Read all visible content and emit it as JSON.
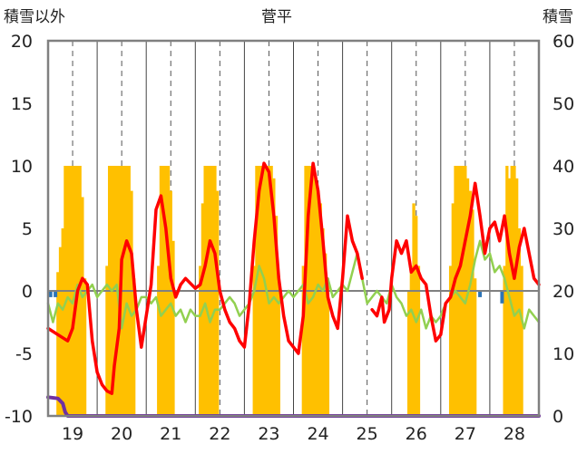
{
  "chart_data": {
    "type": "line",
    "title": "菅平",
    "ylabel_left": "積雪以外",
    "ylabel_right": "積雪",
    "ylim_left": [
      -10,
      20
    ],
    "ylim_right": [
      0,
      60
    ],
    "yticks_left": [
      "20",
      "15",
      "10",
      "5",
      "0",
      "-5",
      "-10"
    ],
    "yticks_right": [
      "60",
      "50",
      "40",
      "30",
      "20",
      "10",
      "0"
    ],
    "xlim": [
      18.5,
      28.5
    ],
    "xticks": [
      "19",
      "20",
      "21",
      "22",
      "23",
      "24",
      "25",
      "26",
      "27",
      "28"
    ],
    "grid": "vertical-dashed-half-days",
    "colors": {
      "snow_depth": "#FFC000",
      "red_line": "#FF0000",
      "green_line": "#92D050",
      "purple_line": "#7030A0",
      "blue_bars": "#2E75B6",
      "frame": "#808080"
    },
    "series": [
      {
        "key": "red",
        "axis": "left",
        "x": [
          18.5,
          18.7,
          18.9,
          19.0,
          19.1,
          19.2,
          19.3,
          19.4,
          19.5,
          19.6,
          19.7,
          19.8,
          19.85,
          19.95,
          20.0,
          20.1,
          20.2,
          20.3,
          20.4,
          20.5,
          20.6,
          20.7,
          20.8,
          20.9,
          21.0,
          21.1,
          21.2,
          21.3,
          21.4,
          21.5,
          21.6,
          21.7,
          21.8,
          21.9,
          22.0,
          22.1,
          22.2,
          22.3,
          22.4,
          22.5,
          22.6,
          22.7,
          22.8,
          22.9,
          23.0,
          23.1,
          23.2,
          23.3,
          23.4,
          23.5,
          23.6,
          23.7,
          23.8,
          23.9,
          24.0,
          24.1,
          24.2,
          24.3,
          24.4,
          24.5,
          24.6,
          24.7,
          24.8,
          24.9,
          25.0,
          25.1,
          25.2,
          25.3,
          25.35,
          25.45,
          25.5,
          25.6,
          25.7,
          25.8,
          25.9,
          26.0,
          26.1,
          26.2,
          26.3,
          26.4,
          26.5,
          26.6,
          26.7,
          26.8,
          26.9,
          27.0,
          27.1,
          27.2,
          27.3,
          27.4,
          27.5,
          27.6,
          27.7,
          27.8,
          27.9,
          28.0,
          28.1,
          28.2,
          28.3,
          28.4,
          28.5
        ],
        "y": [
          -3.0,
          -3.5,
          -4.0,
          -3.0,
          0.0,
          1.0,
          0.5,
          -4.0,
          -6.5,
          -7.5,
          -8.0,
          -8.2,
          -6.0,
          -3.0,
          2.5,
          4.0,
          3.0,
          -1.5,
          -4.5,
          -2.0,
          0.5,
          6.5,
          7.6,
          5.0,
          1.0,
          -0.5,
          0.5,
          1.0,
          0.6,
          0.2,
          0.5,
          2.0,
          4.0,
          3.0,
          0.0,
          -1.5,
          -2.5,
          -3.0,
          -4.0,
          -4.5,
          -1.0,
          4.0,
          8.0,
          10.2,
          9.5,
          6.0,
          1.0,
          -2.0,
          -4.0,
          -4.5,
          -5.0,
          -2.0,
          6.0,
          10.2,
          8.0,
          4.0,
          -0.5,
          -2.0,
          -3.0,
          1.0,
          6.0,
          4.0,
          3.0,
          1.0,
          null,
          -1.5,
          -2.0,
          -0.5,
          -2.5,
          -1.5,
          1.0,
          4.0,
          3.0,
          4.0,
          1.5,
          2.0,
          1.0,
          0.5,
          -2.0,
          -4.0,
          -3.5,
          -1.0,
          -0.5,
          1.0,
          2.0,
          4.0,
          6.0,
          8.6,
          6.0,
          3.0,
          5.0,
          5.5,
          4.0,
          6.0,
          3.0,
          1.0,
          3.5,
          5.0,
          3.0,
          1.0,
          0.5
        ]
      },
      {
        "key": "green",
        "axis": "left",
        "x": [
          18.5,
          18.6,
          18.7,
          18.8,
          18.9,
          19.0,
          19.1,
          19.2,
          19.3,
          19.4,
          19.5,
          19.6,
          19.7,
          19.8,
          19.9,
          20.0,
          20.1,
          20.2,
          20.3,
          20.4,
          20.5,
          20.6,
          20.7,
          20.8,
          20.9,
          21.0,
          21.1,
          21.2,
          21.3,
          21.4,
          21.5,
          21.6,
          21.7,
          21.8,
          21.9,
          22.0,
          22.1,
          22.2,
          22.3,
          22.4,
          22.5,
          22.6,
          22.7,
          22.8,
          22.9,
          23.0,
          23.1,
          23.2,
          23.3,
          23.4,
          23.5,
          23.6,
          23.7,
          23.8,
          23.9,
          24.0,
          24.1,
          24.2,
          24.3,
          24.4,
          24.5,
          24.6,
          24.7,
          24.8,
          24.9,
          25.0,
          25.1,
          25.2,
          25.3,
          25.4,
          25.5,
          25.6,
          25.7,
          25.8,
          25.9,
          26.0,
          26.1,
          26.2,
          26.3,
          26.4,
          26.5,
          26.6,
          26.7,
          26.8,
          26.9,
          27.0,
          27.1,
          27.2,
          27.3,
          27.4,
          27.5,
          27.6,
          27.7,
          27.8,
          27.9,
          28.0,
          28.1,
          28.2,
          28.3,
          28.4,
          28.5
        ],
        "y": [
          -1.0,
          -2.5,
          -1.0,
          -1.5,
          -0.5,
          -1.0,
          0.5,
          -0.5,
          0.0,
          0.5,
          -0.5,
          0.0,
          0.5,
          0.0,
          0.5,
          -3.0,
          -1.0,
          -2.0,
          -1.5,
          -0.5,
          -0.5,
          -1.0,
          -0.5,
          -2.0,
          -1.5,
          -1.0,
          -2.0,
          -1.5,
          -2.5,
          -1.5,
          -2.0,
          -2.0,
          -1.0,
          -2.5,
          -1.5,
          -1.5,
          -1.0,
          -0.5,
          -1.0,
          -2.0,
          -1.5,
          -1.0,
          0.0,
          2.0,
          1.0,
          -1.0,
          -0.5,
          -1.0,
          -0.5,
          0.0,
          -0.5,
          0.0,
          0.5,
          -1.0,
          -0.5,
          0.5,
          0.0,
          1.0,
          -0.5,
          0.0,
          0.5,
          0.0,
          1.5,
          3.0,
          1.0,
          -1.0,
          -0.5,
          0.0,
          -0.5,
          -1.0,
          0.5,
          -0.5,
          -1.0,
          -2.0,
          -1.5,
          -2.5,
          -1.5,
          -3.0,
          -2.0,
          -2.5,
          -2.0,
          -1.0,
          -0.5,
          0.0,
          -0.5,
          -1.0,
          0.5,
          2.5,
          4.0,
          2.5,
          3.0,
          1.5,
          2.0,
          1.0,
          -0.5,
          -2.0,
          -1.5,
          -3.0,
          -1.5,
          -2.0,
          -2.5
        ]
      },
      {
        "key": "purple",
        "axis": "left",
        "x": [
          18.5,
          18.7,
          18.8,
          18.85,
          18.9,
          28.5
        ],
        "y": [
          -8.5,
          -8.6,
          -9.0,
          -9.7,
          -10.0,
          -10.0
        ]
      }
    ],
    "snow_depth": {
      "axis": "right",
      "x": [
        18.7,
        18.75,
        18.8,
        18.85,
        18.9,
        18.95,
        19.0,
        19.05,
        19.1,
        19.15,
        19.2,
        19.25,
        19.7,
        19.75,
        19.8,
        19.85,
        19.9,
        19.95,
        20.0,
        20.05,
        20.1,
        20.15,
        20.2,
        20.25,
        20.75,
        20.8,
        20.85,
        20.9,
        20.95,
        21.0,
        21.05,
        21.6,
        21.65,
        21.7,
        21.75,
        21.8,
        21.85,
        21.9,
        21.95,
        22.7,
        22.75,
        22.8,
        22.85,
        22.9,
        22.95,
        23.0,
        23.05,
        23.1,
        23.15,
        23.2,
        23.7,
        23.75,
        23.8,
        23.85,
        23.9,
        23.95,
        24.0,
        24.05,
        24.1,
        24.15,
        24.2,
        25.85,
        25.9,
        25.95,
        26.0,
        26.05,
        26.7,
        26.75,
        26.8,
        26.85,
        26.9,
        26.95,
        27.0,
        27.05,
        27.1,
        27.15,
        27.2,
        27.8,
        27.85,
        27.9,
        27.95,
        28.0,
        28.05,
        28.1,
        28.15
      ],
      "values": [
        23,
        27,
        30,
        40,
        40,
        40,
        40,
        40,
        40,
        40,
        35,
        22,
        24,
        40,
        40,
        40,
        40,
        40,
        40,
        40,
        40,
        40,
        36,
        22,
        24,
        40,
        40,
        40,
        40,
        36,
        28,
        24,
        34,
        40,
        40,
        40,
        40,
        40,
        36,
        24,
        40,
        40,
        40,
        40,
        40,
        40,
        40,
        38,
        32,
        22,
        24,
        40,
        40,
        40,
        40,
        38,
        36,
        34,
        30,
        26,
        22,
        20,
        24,
        34,
        32,
        24,
        24,
        34,
        40,
        40,
        40,
        40,
        40,
        38,
        36,
        33,
        22,
        24,
        40,
        38,
        40,
        40,
        38,
        30,
        24
      ]
    },
    "precip_bars": {
      "axis": "left",
      "x": [
        18.55,
        18.65,
        27.3,
        27.75
      ],
      "values": [
        -0.5,
        -0.5,
        -0.5,
        -1.0
      ]
    }
  }
}
